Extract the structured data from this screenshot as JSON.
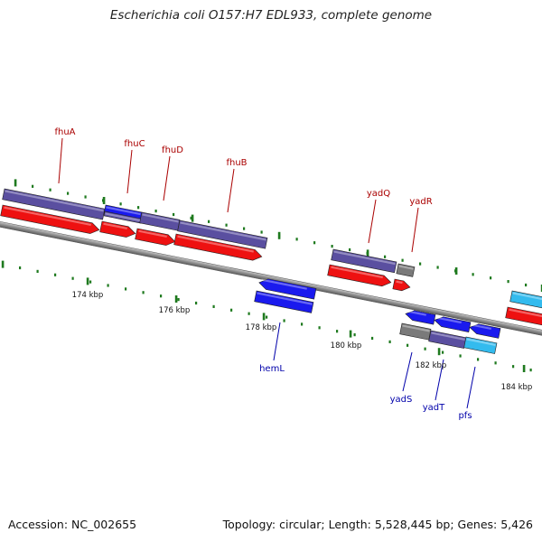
{
  "title": "Escherichia coli O157:H7 EDL933, complete genome",
  "footer": {
    "accession": "Accession: NC_002655",
    "summary": "Topology: circular; Length: 5,528,445 bp; Genes: 5,426"
  },
  "colors": {
    "forward_label": "#aa0000",
    "reverse_label": "#0000aa",
    "tick": "#1f7a1f",
    "backbone": "#8c8c8c",
    "red": "#ee1111",
    "purple": "#5a4fa0",
    "blue": "#1a1aee",
    "gray": "#7a7a7a",
    "cyan": "#33bbee"
  },
  "kbp_labels": [
    "174 kbp",
    "176 kbp",
    "178 kbp",
    "180 kbp",
    "182 kbp",
    "184 kbp"
  ],
  "forward_genes": [
    {
      "name": "fhuA"
    },
    {
      "name": "fhuC"
    },
    {
      "name": "fhuD"
    },
    {
      "name": "fhuB"
    },
    {
      "name": "yadQ"
    },
    {
      "name": "yadR"
    }
  ],
  "reverse_genes": [
    {
      "name": "hemL"
    },
    {
      "name": "yadS"
    },
    {
      "name": "yadT"
    },
    {
      "name": "pfs"
    }
  ]
}
